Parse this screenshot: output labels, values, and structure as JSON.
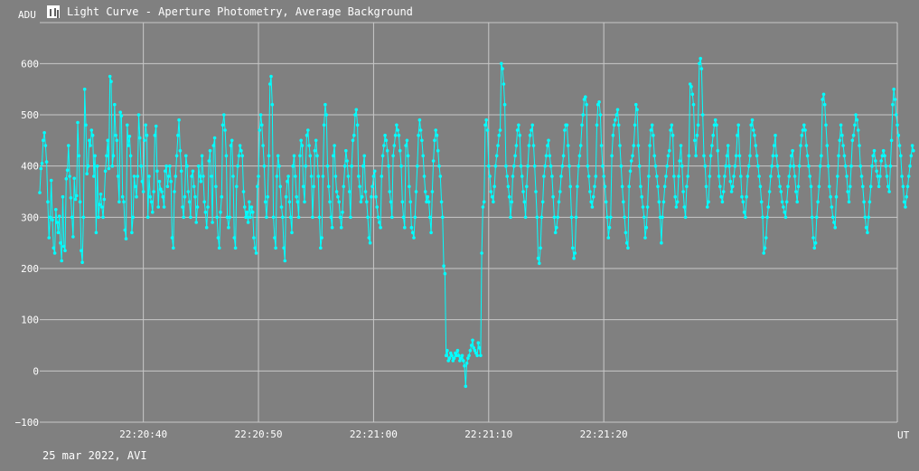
{
  "window": {
    "title": "Light Curve - Aperture Photometry, Average Background",
    "icon": "light-curve-icon"
  },
  "footer": {
    "text": "25 mar 2022, AVI"
  },
  "colors": {
    "background": "#808080",
    "grid": "#c8c8c8",
    "series": "#00ffff"
  },
  "chart_data": {
    "type": "line",
    "title": "Light Curve - Aperture Photometry, Average Background",
    "ylabel": "ADU",
    "xlabel": "UT",
    "ylim": [
      -100,
      680
    ],
    "xlim": [
      "22:20:31.0",
      "22:21:45.5"
    ],
    "y_ticks": [
      -100,
      0,
      100,
      200,
      300,
      400,
      500,
      600
    ],
    "x_ticks": [
      "22:20:40",
      "22:20:50",
      "22:21:00",
      "22:21:10",
      "22:21:20"
    ],
    "grid": true,
    "legend": "none",
    "series": [
      {
        "x_start": "22:20:31.0",
        "sample_interval_s": 0.1,
        "values": [
          348,
          395,
          405,
          450,
          465,
          440,
          408,
          330,
          260,
          300,
          372,
          295,
          240,
          230,
          315,
          290,
          270,
          302,
          250,
          215,
          340,
          243,
          235,
          375,
          392,
          440,
          380,
          338,
          300,
          262,
          376,
          335,
          342,
          485,
          420,
          330,
          235,
          212,
          300,
          550,
          480,
          385,
          400,
          450,
          440,
          470,
          460,
          380,
          420,
          270,
          400,
          300,
          325,
          345,
          320,
          300,
          335,
          390,
          420,
          450,
          395,
          575,
          565,
          400,
          420,
          520,
          460,
          450,
          380,
          330,
          505,
          498,
          340,
          330,
          275,
          258,
          480,
          440,
          458,
          420,
          270,
          300,
          380,
          360,
          340,
          380,
          500,
          455,
          400,
          370,
          350,
          450,
          480,
          460,
          300,
          380,
          340,
          330,
          310,
          350,
          460,
          478,
          390,
          320,
          370,
          355,
          350,
          340,
          320,
          390,
          400,
          360,
          380,
          400,
          370,
          260,
          240,
          350,
          380,
          420,
          460,
          490,
          430,
          390,
          320,
          300,
          340,
          420,
          400,
          350,
          330,
          300,
          380,
          390,
          360,
          340,
          290,
          320,
          400,
          380,
          370,
          420,
          380,
          330,
          310,
          280,
          320,
          410,
          430,
          380,
          290,
          440,
          455,
          360,
          300,
          260,
          240,
          310,
          340,
          480,
          500,
          470,
          420,
          300,
          280,
          300,
          440,
          450,
          380,
          260,
          240,
          360,
          400,
          420,
          440,
          430,
          420,
          350,
          320,
          300,
          310,
          290,
          330,
          300,
          320,
          310,
          260,
          240,
          230,
          360,
          380,
          470,
          500,
          480,
          440,
          400,
          330,
          300,
          340,
          420,
          560,
          575,
          520,
          300,
          260,
          240,
          380,
          420,
          400,
          360,
          320,
          300,
          240,
          215,
          340,
          370,
          380,
          330,
          300,
          270,
          400,
          420,
          380,
          340,
          330,
          300,
          420,
          450,
          440,
          360,
          330,
          400,
          460,
          470,
          440,
          420,
          380,
          300,
          360,
          430,
          450,
          420,
          380,
          300,
          240,
          260,
          380,
          480,
          520,
          500,
          400,
          360,
          330,
          300,
          280,
          420,
          440,
          380,
          350,
          340,
          330,
          300,
          280,
          310,
          360,
          400,
          430,
          410,
          380,
          350,
          300,
          400,
          450,
          460,
          500,
          510,
          480,
          380,
          360,
          330,
          340,
          400,
          420,
          350,
          330,
          300,
          260,
          250,
          340,
          360,
          380,
          390,
          340,
          320,
          300,
          290,
          280,
          380,
          420,
          440,
          460,
          450,
          430,
          400,
          350,
          330,
          300,
          420,
          440,
          460,
          480,
          470,
          460,
          430,
          400,
          330,
          300,
          280,
          440,
          450,
          420,
          360,
          330,
          280,
          270,
          260,
          300,
          350,
          400,
          460,
          490,
          470,
          450,
          420,
          380,
          350,
          330,
          340,
          330,
          300,
          270,
          350,
          410,
          450,
          470,
          460,
          430,
          400,
          380,
          330,
          300,
          205,
          190,
          30,
          40,
          20,
          25,
          35,
          30,
          20,
          25,
          35,
          30,
          40,
          30,
          20,
          25,
          30,
          20,
          10,
          -30,
          15,
          25,
          30,
          40,
          50,
          60,
          45,
          40,
          35,
          30,
          55,
          45,
          30,
          230,
          320,
          330,
          480,
          490,
          470,
          400,
          380,
          350,
          340,
          330,
          360,
          400,
          420,
          440,
          460,
          470,
          600,
          590,
          560,
          520,
          400,
          380,
          360,
          340,
          300,
          330,
          380,
          400,
          420,
          440,
          470,
          480,
          460,
          400,
          380,
          350,
          330,
          300,
          360,
          400,
          440,
          460,
          470,
          480,
          440,
          400,
          350,
          300,
          220,
          210,
          240,
          300,
          330,
          380,
          400,
          420,
          440,
          450,
          420,
          400,
          380,
          340,
          300,
          270,
          280,
          300,
          330,
          350,
          380,
          400,
          420,
          470,
          480,
          480,
          440,
          400,
          360,
          300,
          240,
          220,
          230,
          300,
          360,
          400,
          420,
          440,
          480,
          500,
          530,
          535,
          520,
          400,
          380,
          350,
          330,
          320,
          340,
          360,
          380,
          480,
          520,
          525,
          500,
          440,
          400,
          380,
          360,
          330,
          300,
          260,
          280,
          300,
          420,
          460,
          480,
          490,
          500,
          510,
          480,
          440,
          400,
          360,
          330,
          300,
          270,
          250,
          240,
          360,
          390,
          410,
          420,
          440,
          480,
          520,
          510,
          440,
          400,
          360,
          340,
          320,
          300,
          260,
          280,
          320,
          380,
          440,
          470,
          480,
          460,
          420,
          400,
          380,
          360,
          330,
          300,
          250,
          300,
          330,
          360,
          380,
          400,
          420,
          430,
          470,
          480,
          460,
          380,
          340,
          320,
          330,
          380,
          410,
          440,
          400,
          350,
          320,
          300,
          360,
          380,
          420,
          560,
          555,
          540,
          520,
          450,
          420,
          460,
          480,
          600,
          610,
          590,
          500,
          420,
          400,
          360,
          320,
          330,
          380,
          420,
          440,
          460,
          480,
          490,
          480,
          430,
          380,
          360,
          340,
          330,
          350,
          380,
          400,
          420,
          440,
          400,
          370,
          350,
          360,
          380,
          400,
          420,
          460,
          480,
          420,
          380,
          340,
          330,
          310,
          300,
          340,
          380,
          400,
          420,
          480,
          490,
          470,
          460,
          440,
          420,
          400,
          380,
          360,
          330,
          300,
          230,
          240,
          260,
          300,
          320,
          350,
          380,
          400,
          420,
          440,
          460,
          420,
          400,
          380,
          360,
          350,
          330,
          320,
          310,
          300,
          330,
          360,
          380,
          400,
          420,
          430,
          400,
          380,
          350,
          330,
          360,
          400,
          440,
          460,
          470,
          480,
          470,
          440,
          420,
          400,
          380,
          360,
          300,
          260,
          240,
          250,
          300,
          330,
          360,
          400,
          420,
          530,
          540,
          520,
          480,
          440,
          400,
          360,
          340,
          320,
          300,
          290,
          280,
          340,
          380,
          420,
          450,
          480,
          460,
          440,
          420,
          400,
          380,
          350,
          330,
          360,
          400,
          450,
          460,
          480,
          500,
          490,
          470,
          440,
          400,
          380,
          360,
          330,
          300,
          280,
          270,
          300,
          330,
          360,
          400,
          420,
          430,
          410,
          390,
          380,
          360,
          380,
          410,
          420,
          430,
          420,
          400,
          380,
          360,
          350,
          400,
          450,
          520,
          550,
          530,
          500,
          480,
          460,
          440,
          420,
          380,
          360,
          330,
          320,
          340,
          360,
          380,
          400,
          420,
          440,
          430
        ]
      }
    ]
  }
}
